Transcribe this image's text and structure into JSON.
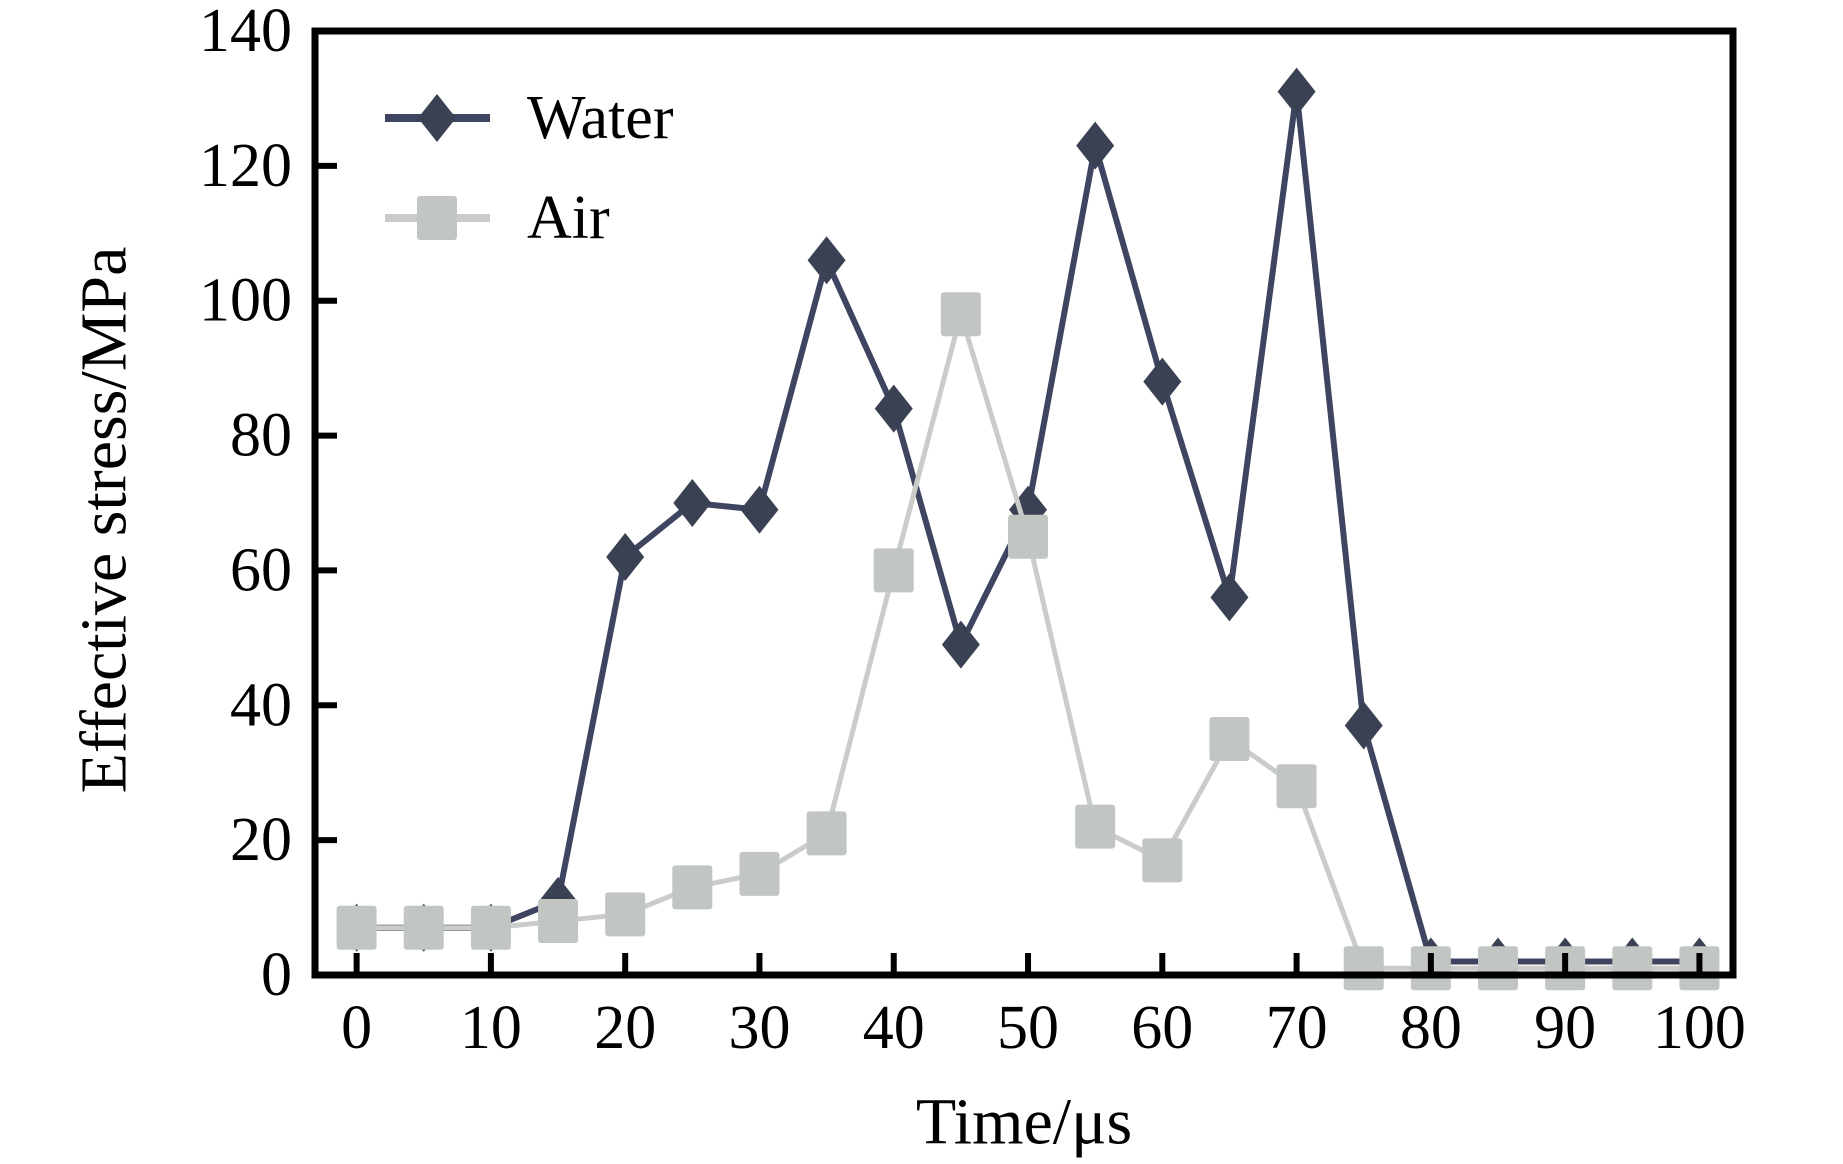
{
  "chart_data": {
    "type": "line",
    "title": "",
    "xlabel": "Time/μs",
    "ylabel": "Effective stress/MPa",
    "x": [
      0,
      5,
      10,
      15,
      20,
      25,
      30,
      35,
      40,
      45,
      50,
      55,
      60,
      65,
      70,
      75,
      80,
      85,
      90,
      95,
      100
    ],
    "series": [
      {
        "name": "Water",
        "marker": "diamond",
        "color": "#3a4153",
        "line_color": "#3f4560",
        "values": [
          7,
          7,
          7,
          11,
          62,
          70,
          69,
          106,
          84,
          49,
          69,
          123,
          88,
          56,
          131,
          37,
          2,
          2,
          2,
          2,
          2
        ]
      },
      {
        "name": "Air",
        "marker": "square",
        "color": "#c2c6c2",
        "line_color": "#c9ccc9",
        "values": [
          7,
          7,
          7,
          8,
          9,
          13,
          15,
          21,
          60,
          98,
          65,
          22,
          17,
          35,
          28,
          1,
          1,
          1,
          1,
          1,
          1
        ]
      }
    ],
    "xlim": [
      -3.1,
      102.5
    ],
    "ylim": [
      0,
      140
    ],
    "xticks": [
      0,
      10,
      20,
      30,
      40,
      50,
      60,
      70,
      80,
      90,
      100
    ],
    "yticks": [
      0,
      20,
      40,
      60,
      80,
      100,
      120,
      140
    ],
    "grid": false,
    "legend_position": "upper-left",
    "axis_color": "#000000",
    "background_color": "#ffffff"
  }
}
